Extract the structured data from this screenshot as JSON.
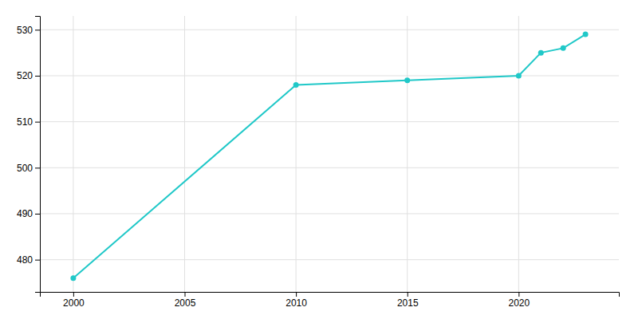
{
  "chart_data": {
    "type": "line",
    "x": [
      2000,
      2010,
      2015,
      2020,
      2021,
      2022,
      2023
    ],
    "values": [
      476,
      518,
      519,
      520,
      525,
      526,
      529
    ],
    "color": "#20C8C8",
    "marker": "circle",
    "xlim": [
      1998.5,
      2024.5
    ],
    "ylim": [
      473,
      533
    ],
    "xticks": [
      2000,
      2005,
      2010,
      2015,
      2020
    ],
    "yticks": [
      480,
      490,
      500,
      510,
      520,
      530
    ],
    "grid": true
  }
}
